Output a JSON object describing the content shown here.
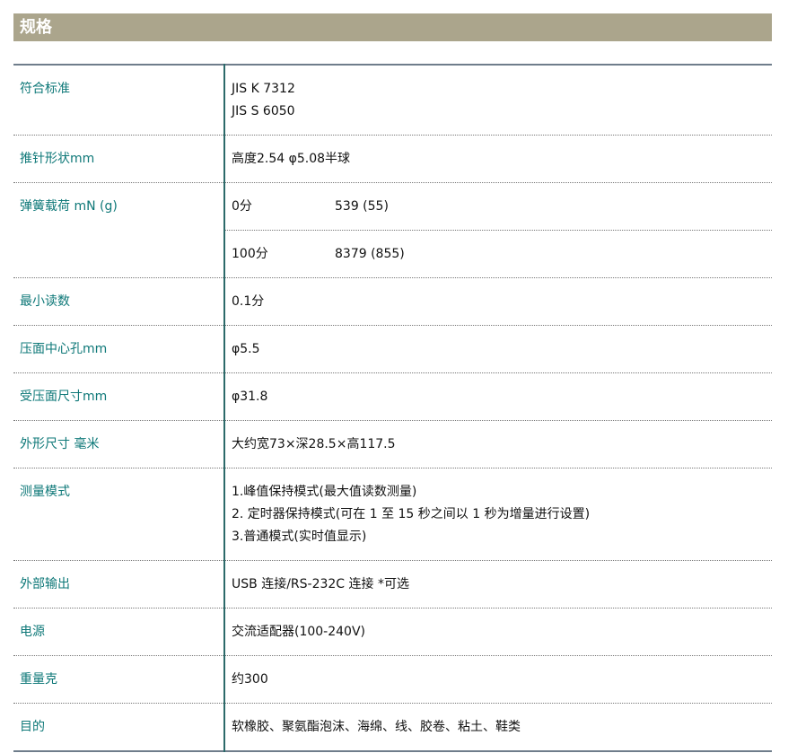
{
  "title": "规格",
  "rows": [
    {
      "label": "符合标准",
      "lines": [
        "JIS K 7312",
        "JIS S 6050"
      ]
    },
    {
      "label": "推针形状mm",
      "lines": [
        "高度2.54 φ5.08半球"
      ]
    },
    {
      "label": "弹簧载荷 mN (g)",
      "sub": [
        {
          "point": "0分",
          "value": "539 (55)"
        },
        {
          "point": "100分",
          "value": "8379 (855)"
        }
      ]
    },
    {
      "label": "最小读数",
      "lines": [
        "0.1分"
      ]
    },
    {
      "label": "压面中心孔mm",
      "lines": [
        "φ5.5"
      ]
    },
    {
      "label": "受压面尺寸mm",
      "lines": [
        "φ31.8"
      ]
    },
    {
      "label": "外形尺寸 毫米",
      "lines": [
        "大约宽73×深28.5×高117.5"
      ]
    },
    {
      "label": "测量模式",
      "lines": [
        "1.峰值保持模式(最大值读数测量)",
        "2. 定时器保持模式(可在 1 至 15 秒之间以 1 秒为增量进行设置)",
        "3.普通模式(实时值显示)"
      ]
    },
    {
      "label": "外部输出",
      "lines": [
        "USB 连接/RS-232C 连接 *可选"
      ]
    },
    {
      "label": "电源",
      "lines": [
        "交流适配器(100-240V)"
      ]
    },
    {
      "label": "重量克",
      "lines": [
        "约300"
      ]
    },
    {
      "label": "目的",
      "lines": [
        "软橡胶、聚氨酯泡沫、海绵、线、胶卷、粘土、鞋类"
      ]
    }
  ]
}
